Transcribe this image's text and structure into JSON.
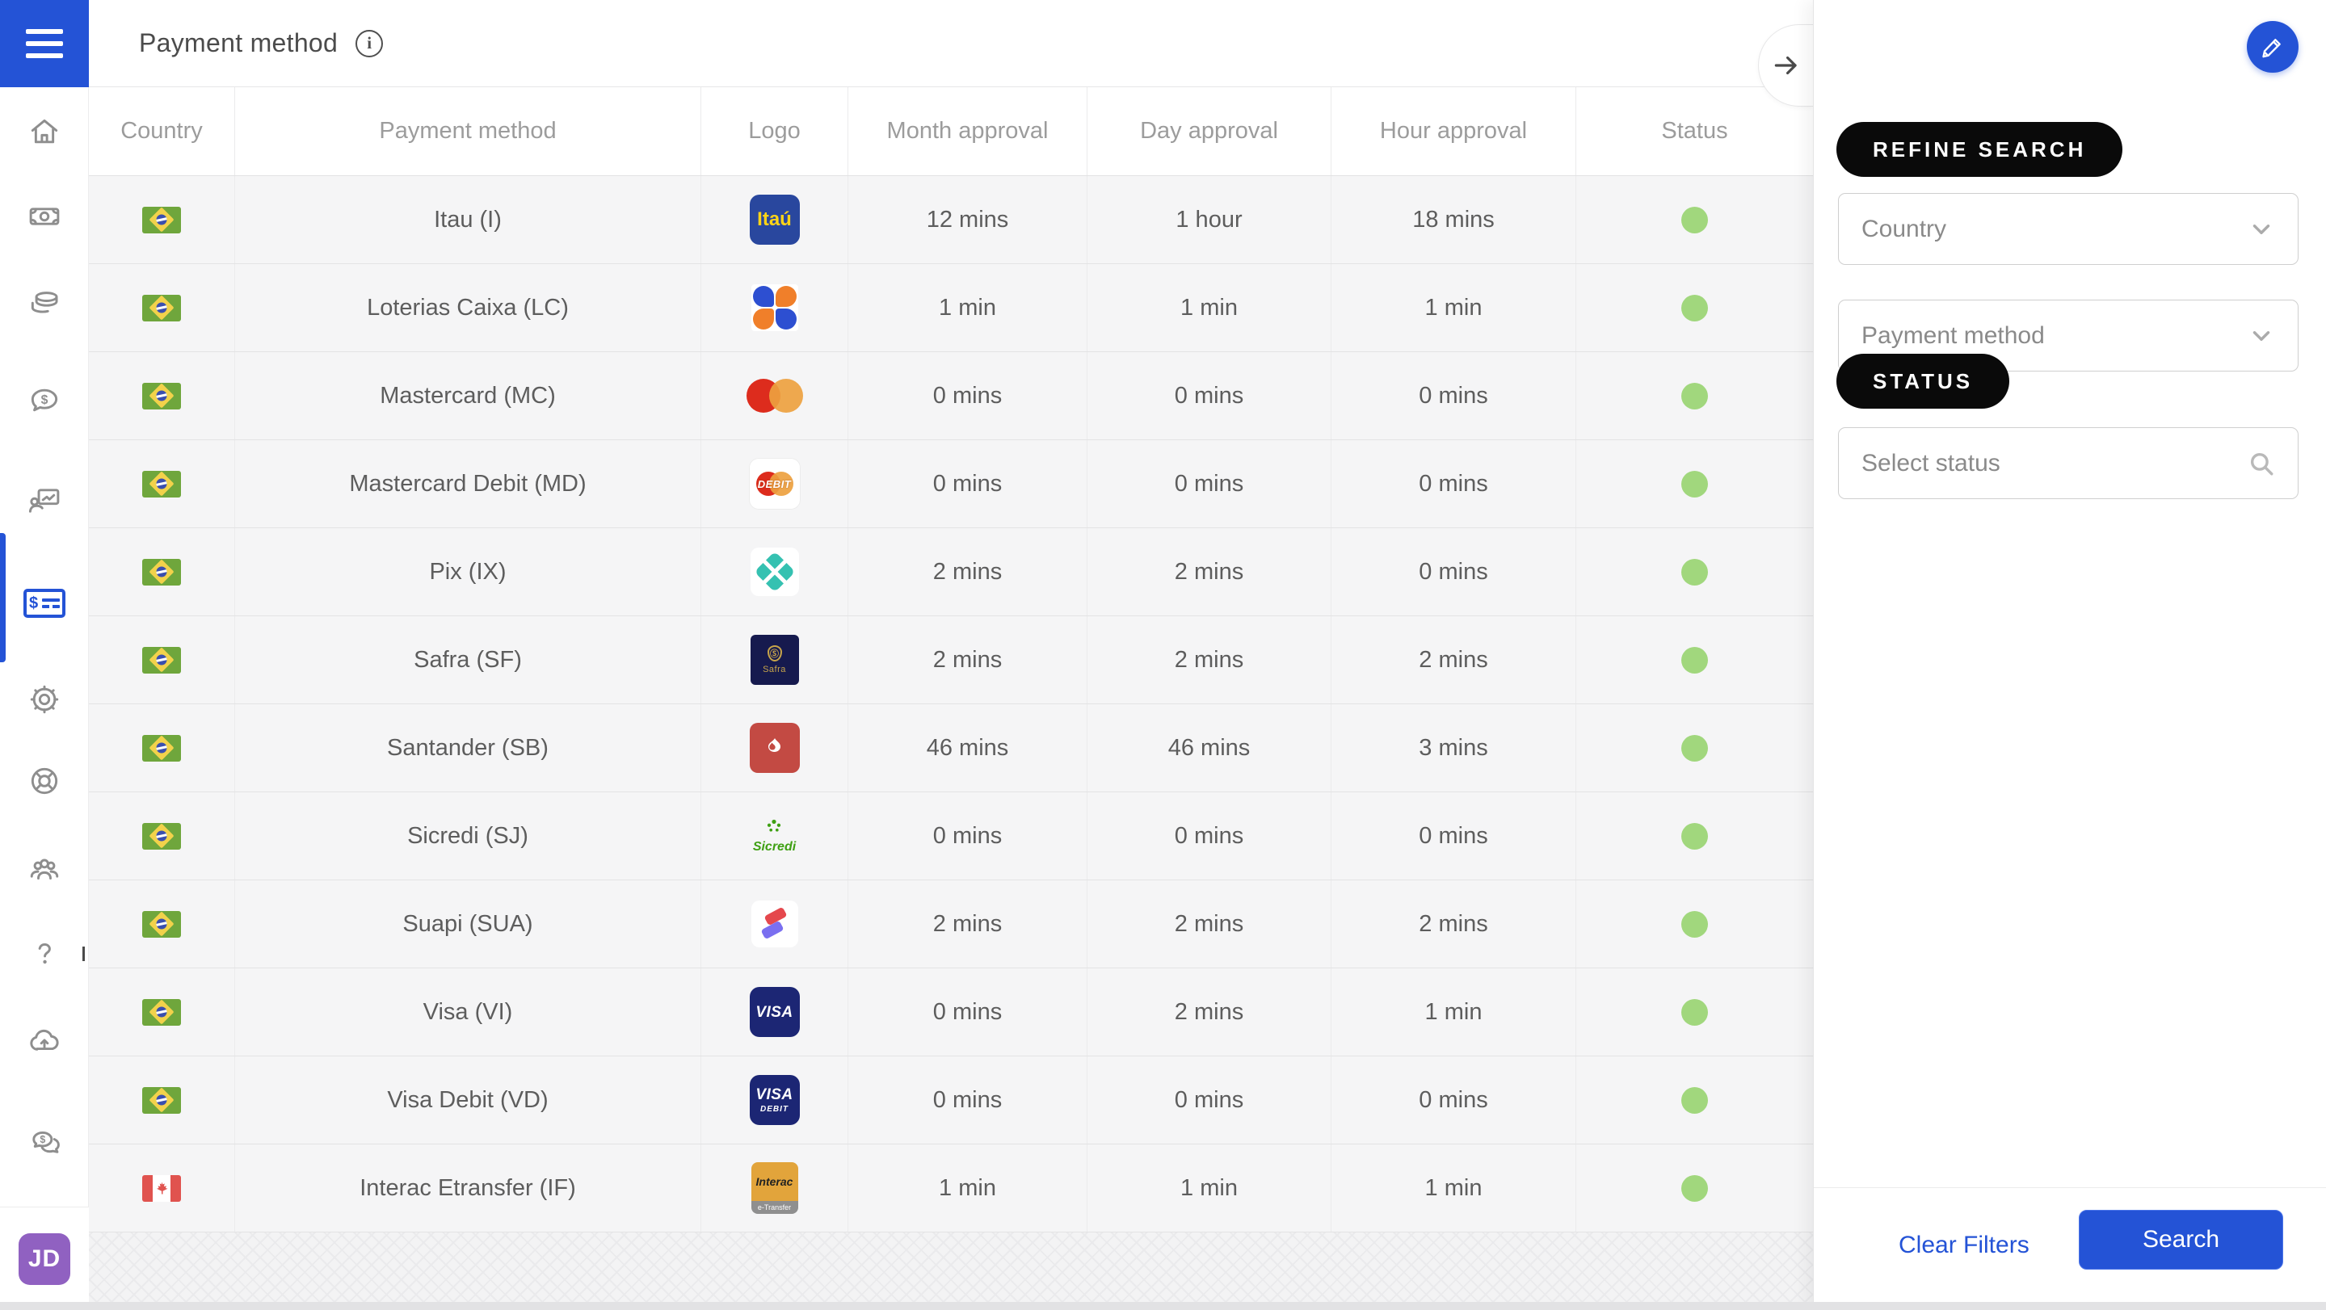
{
  "colors": {
    "accent": "#2453d6",
    "status_green": "#a1d77d",
    "avatar_purple": "#9061c1"
  },
  "topbar": {
    "title": "Payment method",
    "info_icon": "info-icon",
    "collapse_icon": "arrow-right-icon"
  },
  "sidebar": {
    "menu_icon": "hamburger-icon",
    "items": [
      {
        "name": "home",
        "icon": "home-icon",
        "active": false
      },
      {
        "name": "banknote",
        "icon": "banknote-icon",
        "active": false
      },
      {
        "name": "coins",
        "icon": "coins-icon",
        "active": false
      },
      {
        "name": "money-chat",
        "icon": "money-chat-icon",
        "active": false
      },
      {
        "name": "report-presentation",
        "icon": "presentation-icon",
        "active": false
      },
      {
        "name": "payment-methods",
        "icon": "invoice-icon",
        "active": true
      },
      {
        "name": "settings",
        "icon": "gear-icon",
        "active": false
      },
      {
        "name": "support",
        "icon": "lifebuoy-icon",
        "active": false
      },
      {
        "name": "users",
        "icon": "users-icon",
        "active": false
      },
      {
        "name": "help",
        "icon": "question-icon",
        "active": false
      },
      {
        "name": "cloud-upload",
        "icon": "cloud-upload-icon",
        "active": false
      },
      {
        "name": "money-messages",
        "icon": "money-messages-icon",
        "active": false
      }
    ],
    "avatar_initials": "JD"
  },
  "table": {
    "columns": [
      "Country",
      "Payment method",
      "Logo",
      "Month approval",
      "Day approval",
      "Hour approval",
      "Status"
    ],
    "rows": [
      {
        "country": "BR",
        "method": "Itau (I)",
        "logo": "itau",
        "month": "12 mins",
        "day": "1 hour",
        "hour": "18 mins",
        "status": "green"
      },
      {
        "country": "BR",
        "method": "Loterias Caixa (LC)",
        "logo": "caixa",
        "month": "1 min",
        "day": "1 min",
        "hour": "1 min",
        "status": "green"
      },
      {
        "country": "BR",
        "method": "Mastercard (MC)",
        "logo": "mastercard",
        "month": "0 mins",
        "day": "0 mins",
        "hour": "0 mins",
        "status": "green"
      },
      {
        "country": "BR",
        "method": "Mastercard Debit (MD)",
        "logo": "mastercard-debit",
        "month": "0 mins",
        "day": "0 mins",
        "hour": "0 mins",
        "status": "green"
      },
      {
        "country": "BR",
        "method": "Pix (IX)",
        "logo": "pix",
        "month": "2 mins",
        "day": "2 mins",
        "hour": "0 mins",
        "status": "green"
      },
      {
        "country": "BR",
        "method": "Safra (SF)",
        "logo": "safra",
        "month": "2 mins",
        "day": "2 mins",
        "hour": "2 mins",
        "status": "green"
      },
      {
        "country": "BR",
        "method": "Santander (SB)",
        "logo": "santander",
        "month": "46 mins",
        "day": "46 mins",
        "hour": "3 mins",
        "status": "green"
      },
      {
        "country": "BR",
        "method": "Sicredi (SJ)",
        "logo": "sicredi",
        "month": "0 mins",
        "day": "0 mins",
        "hour": "0 mins",
        "status": "green"
      },
      {
        "country": "BR",
        "method": "Suapi (SUA)",
        "logo": "suapi",
        "month": "2 mins",
        "day": "2 mins",
        "hour": "2 mins",
        "status": "green"
      },
      {
        "country": "BR",
        "method": "Visa (VI)",
        "logo": "visa",
        "month": "0 mins",
        "day": "2 mins",
        "hour": "1 min",
        "status": "green"
      },
      {
        "country": "BR",
        "method": "Visa Debit (VD)",
        "logo": "visa-debit",
        "month": "0 mins",
        "day": "0 mins",
        "hour": "0 mins",
        "status": "green"
      },
      {
        "country": "CA",
        "method": "Interac Etransfer (IF)",
        "logo": "interac",
        "month": "1 min",
        "day": "1 min",
        "hour": "1 min",
        "status": "green"
      }
    ],
    "logo_texts": {
      "itau": "Itaú",
      "visa": "VISA",
      "visa_debit_sub": "DEBIT",
      "mastercard_debit": "DEBIT",
      "safra": "Safra",
      "sicredi": "Sicredi",
      "interac": "Interac",
      "interac_sub": "e-Transfer"
    }
  },
  "panel": {
    "refine_label": "REFINE SEARCH",
    "country_placeholder": "Country",
    "method_placeholder": "Payment method",
    "status_label": "STATUS",
    "status_placeholder": "Select status",
    "clear_label": "Clear Filters",
    "search_label": "Search",
    "edit_icon": "pencil-icon"
  }
}
